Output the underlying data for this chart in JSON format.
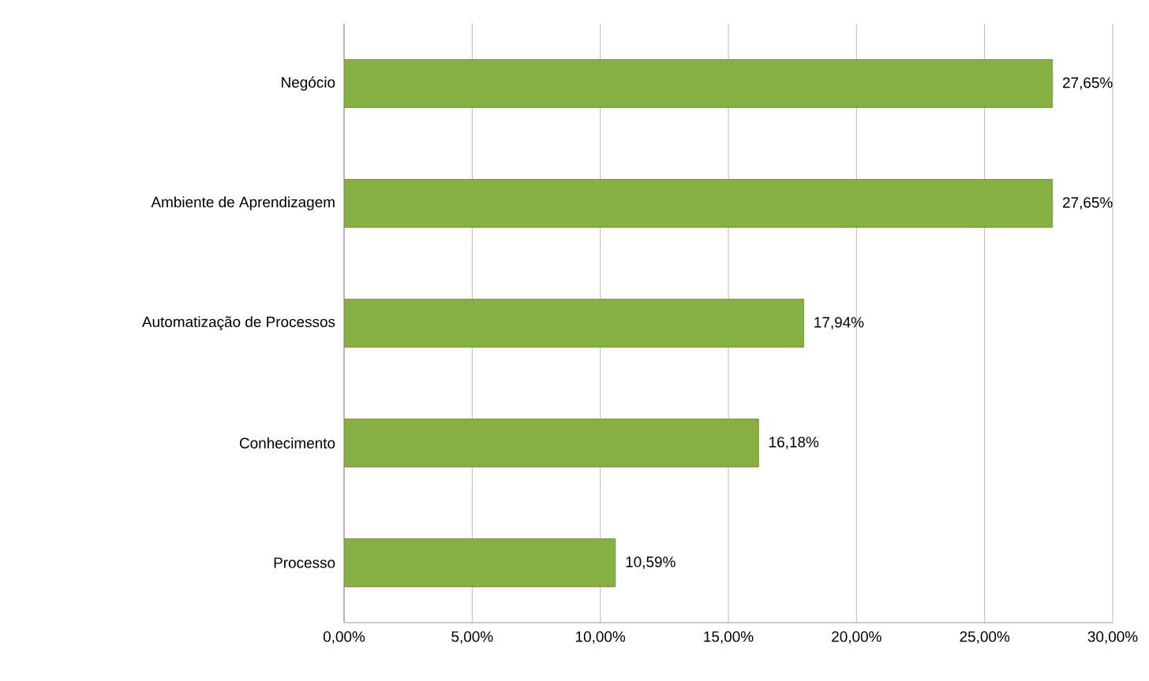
{
  "chart_data": {
    "type": "bar",
    "orientation": "horizontal",
    "categories": [
      "Negócio",
      "Ambiente de Aprendizagem",
      "Automatização de Processos",
      "Conhecimento",
      "Processo"
    ],
    "values": [
      27.65,
      27.65,
      17.94,
      16.18,
      10.59
    ],
    "value_labels": [
      "27,65%",
      "27,65%",
      "17,94%",
      "16,18%",
      "10,59%"
    ],
    "color": "#86b041",
    "xlim": [
      0,
      30
    ],
    "xticks": [
      {
        "value": 0,
        "label": "0,00%"
      },
      {
        "value": 5,
        "label": "5,00%"
      },
      {
        "value": 10,
        "label": "10,00%"
      },
      {
        "value": 15,
        "label": "15,00%"
      },
      {
        "value": 20,
        "label": "20,00%"
      },
      {
        "value": 25,
        "label": "25,00%"
      },
      {
        "value": 30,
        "label": "30,00%"
      }
    ],
    "grid": "x"
  }
}
